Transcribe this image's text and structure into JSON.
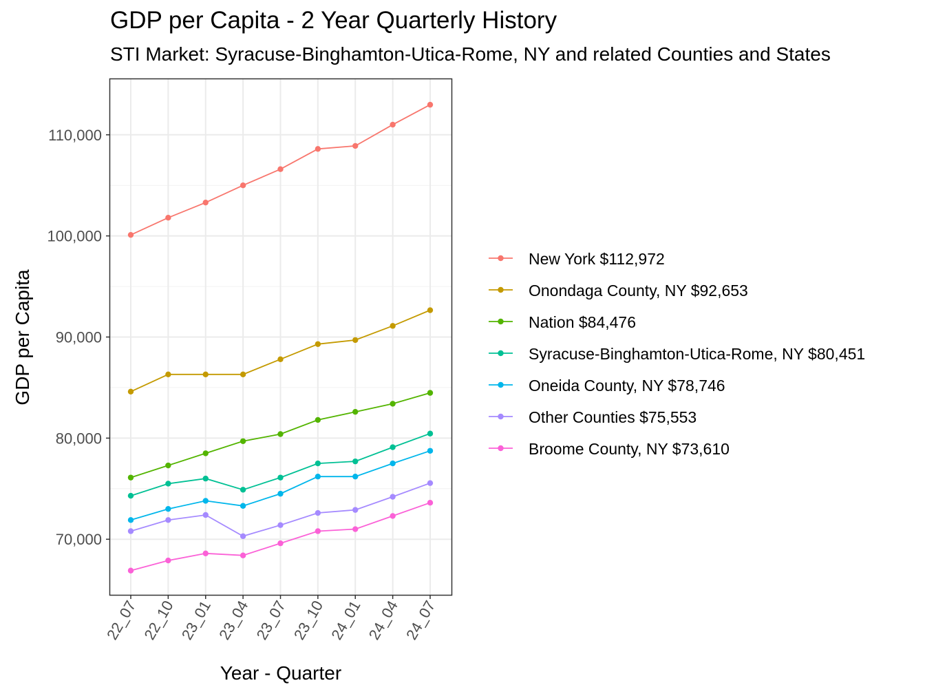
{
  "chart_data": {
    "type": "line",
    "title": "GDP per Capita - 2 Year Quarterly History",
    "subtitle": "STI Market: Syracuse-Binghamton-Utica-Rome, NY and related Counties and States",
    "xlabel": "Year - Quarter",
    "ylabel": "GDP per Capita",
    "categories": [
      "22_07",
      "22_10",
      "23_01",
      "23_04",
      "23_07",
      "23_10",
      "24_01",
      "24_04",
      "24_07"
    ],
    "ylim": [
      64500,
      115500
    ],
    "yticks": [
      70000,
      80000,
      90000,
      100000,
      110000
    ],
    "ytick_labels": [
      "70,000",
      "80,000",
      "90,000",
      "100,000",
      "110,000"
    ],
    "grid": true,
    "legend_position": "right",
    "series": [
      {
        "name": "New York $112,972",
        "color": "#F8766D",
        "values": [
          100100,
          101800,
          103300,
          105000,
          106600,
          108600,
          108900,
          111000,
          112972
        ]
      },
      {
        "name": "Onondaga County, NY $92,653",
        "color": "#C49A00",
        "values": [
          84600,
          86300,
          86300,
          86300,
          87800,
          89300,
          89700,
          91100,
          92653
        ]
      },
      {
        "name": "Nation $84,476",
        "color": "#53B400",
        "values": [
          76100,
          77300,
          78500,
          79700,
          80400,
          81800,
          82600,
          83400,
          84476
        ]
      },
      {
        "name": "Syracuse-Binghamton-Utica-Rome, NY $80,451",
        "color": "#00C094",
        "values": [
          74300,
          75500,
          76000,
          74900,
          76100,
          77500,
          77700,
          79100,
          80451
        ]
      },
      {
        "name": "Oneida County, NY $78,746",
        "color": "#00B6EB",
        "values": [
          71900,
          73000,
          73800,
          73300,
          74500,
          76200,
          76200,
          77500,
          78746
        ]
      },
      {
        "name": "Other Counties $75,553",
        "color": "#A58AFF",
        "values": [
          70800,
          71900,
          72400,
          70300,
          71400,
          72600,
          72900,
          74200,
          75553
        ]
      },
      {
        "name": "Broome County, NY $73,610",
        "color": "#FB61D7",
        "values": [
          66900,
          67900,
          68600,
          68400,
          69600,
          70800,
          71000,
          72300,
          73610
        ]
      }
    ]
  }
}
